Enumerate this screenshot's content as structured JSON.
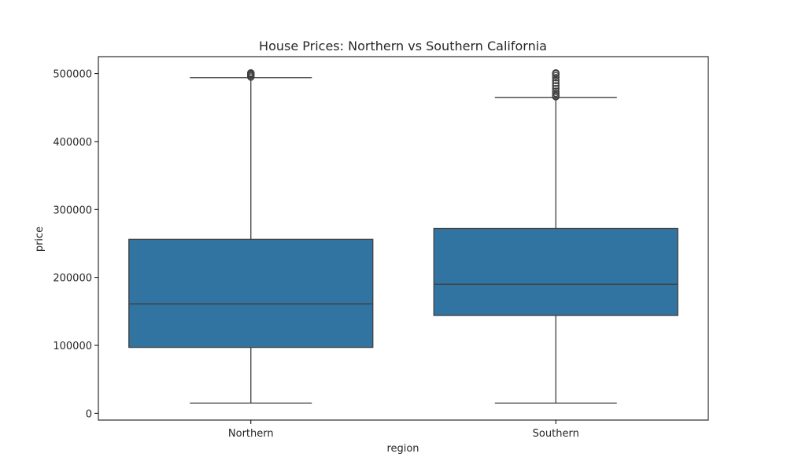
{
  "chart_data": {
    "type": "box",
    "title": "House Prices: Northern vs Southern California",
    "xlabel": "region",
    "ylabel": "price",
    "categories": [
      "Northern",
      "Southern"
    ],
    "ylim": [
      -10000,
      525000
    ],
    "yticks": [
      0,
      100000,
      200000,
      300000,
      400000,
      500000
    ],
    "ytick_labels": [
      "0",
      "100000",
      "200000",
      "300000",
      "400000",
      "500000"
    ],
    "grid": false,
    "legend": "none",
    "box_color": "#3274a1",
    "line_color": "#3f3f3f",
    "boxes": [
      {
        "category": "Northern",
        "whisker_low": 15000,
        "q1": 97000,
        "median": 161000,
        "q3": 256000,
        "whisker_high": 494000,
        "outliers": [
          495000,
          497000,
          499000,
          500000,
          501000
        ]
      },
      {
        "category": "Southern",
        "whisker_low": 15000,
        "q1": 144000,
        "median": 190000,
        "q3": 272000,
        "whisker_high": 465000,
        "outliers": [
          466000,
          468000,
          471000,
          474000,
          478000,
          482000,
          486000,
          490000,
          494000,
          497000,
          500000,
          501000
        ]
      }
    ]
  }
}
